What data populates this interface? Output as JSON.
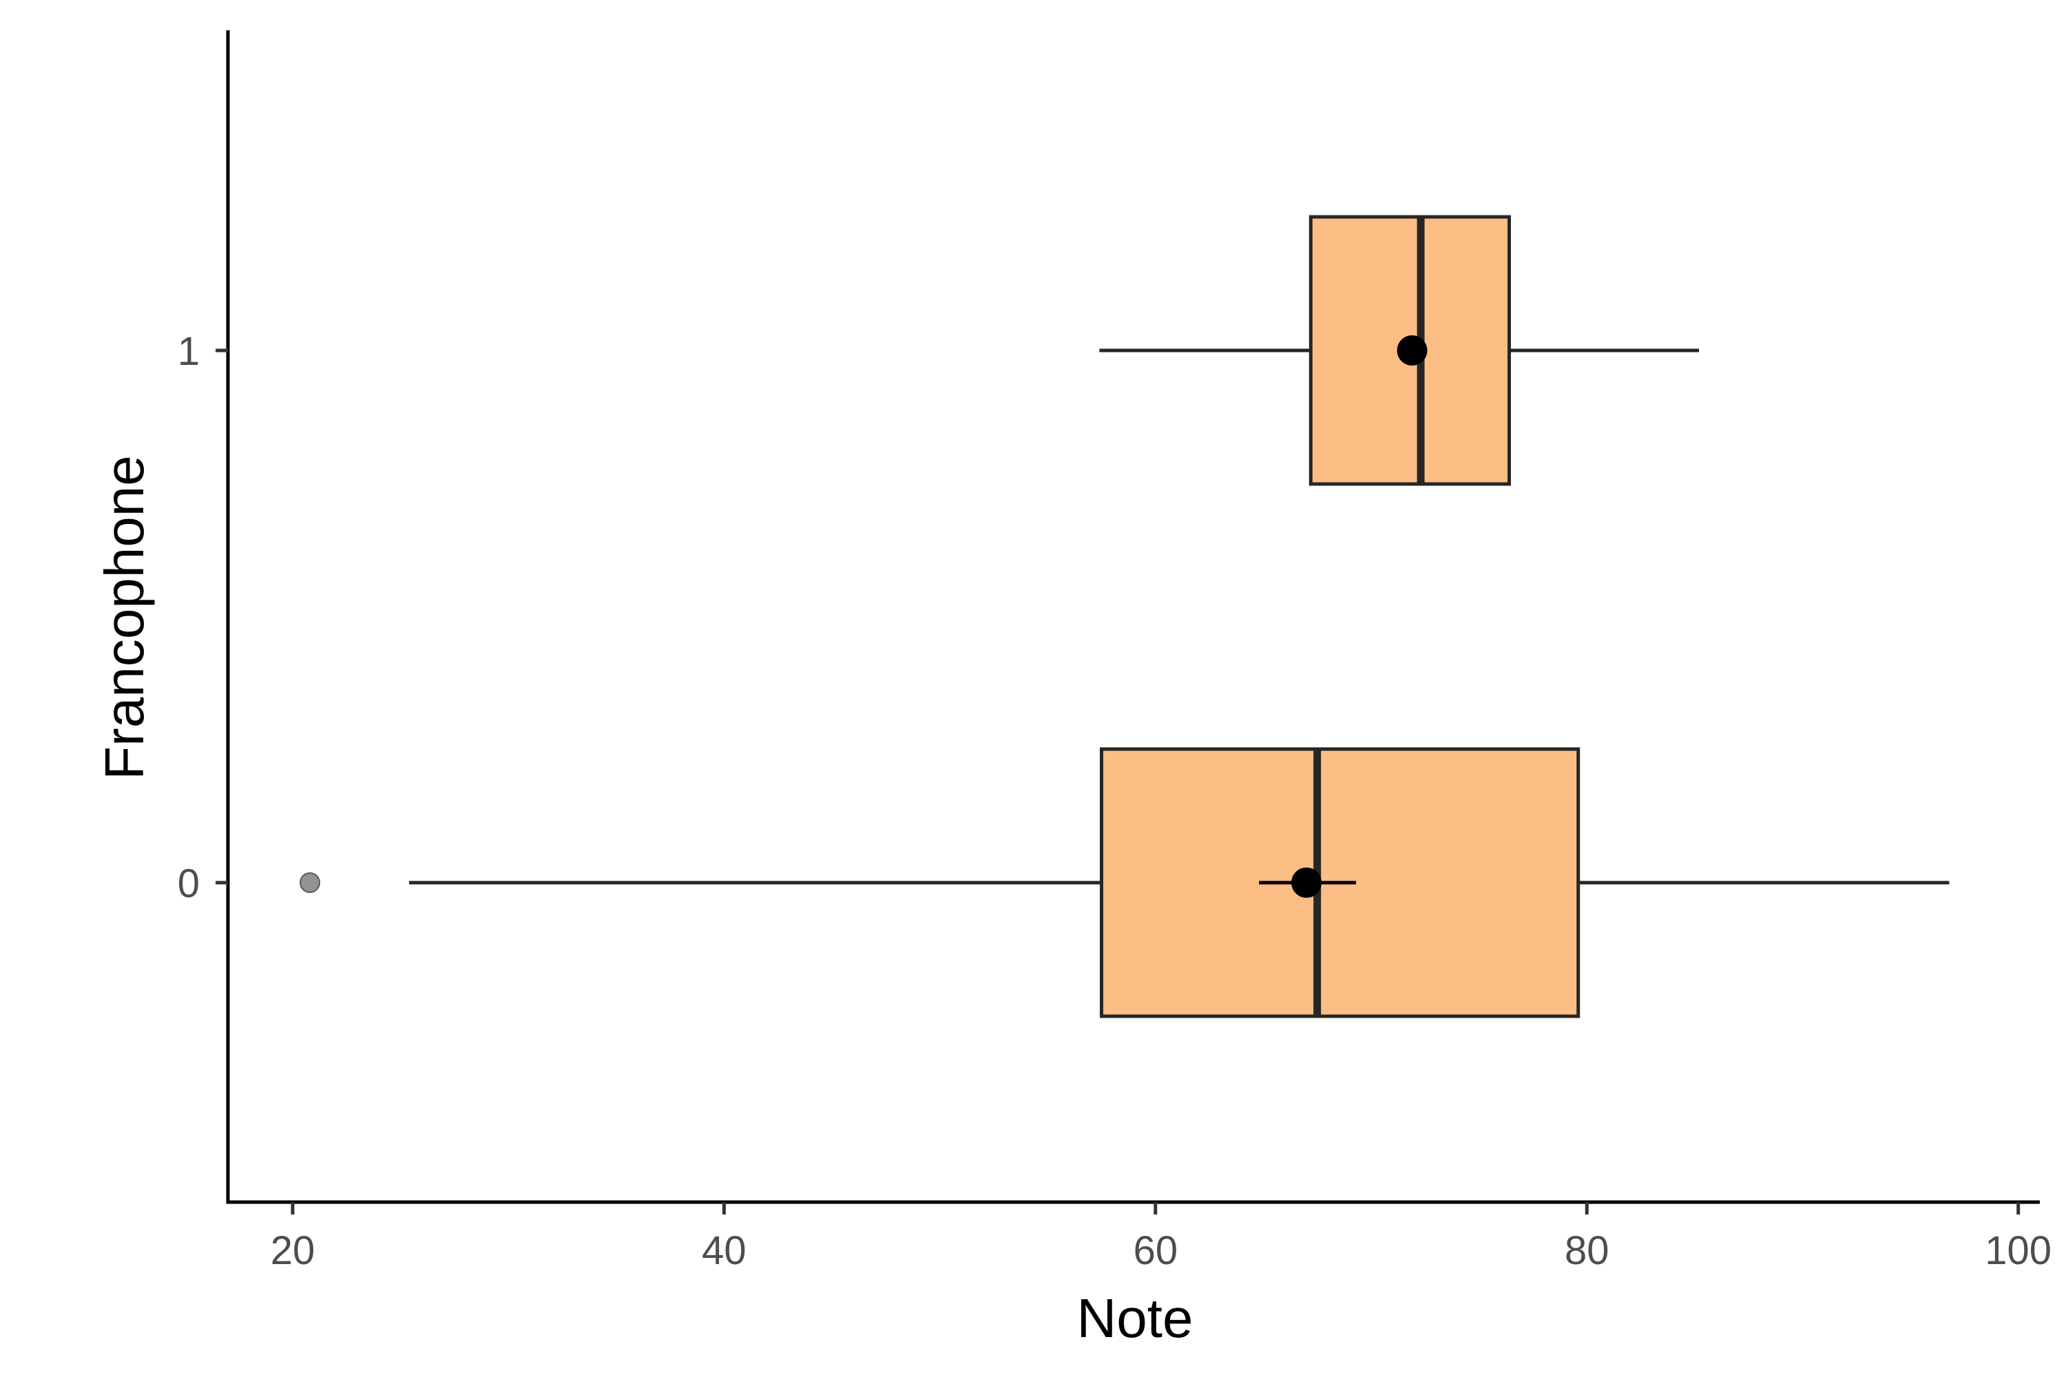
{
  "chart_data": {
    "type": "boxplot",
    "orientation": "horizontal",
    "xlabel": "Note",
    "ylabel": "Francophone",
    "xlim": [
      17,
      101
    ],
    "x_ticks": [
      20,
      40,
      60,
      80,
      100
    ],
    "categories": [
      "0",
      "1"
    ],
    "groups": [
      {
        "category": "0",
        "whisker_low": 25.4,
        "q1": 57.5,
        "median": 67.5,
        "q3": 79.6,
        "whisker_high": 96.8,
        "mean": 67.0,
        "mean_ci": [
          64.8,
          69.3
        ],
        "outliers": [
          20.8
        ]
      },
      {
        "category": "1",
        "whisker_low": 57.4,
        "q1": 67.2,
        "median": 72.3,
        "q3": 76.4,
        "whisker_high": 85.2,
        "mean": 71.9,
        "mean_ci": [
          71.7,
          72.1
        ],
        "outliers": []
      }
    ],
    "box_fill": "#fdbe86",
    "box_stroke": "#262626",
    "mean_color": "#000000",
    "outlier_color": "#7f7f7f",
    "grid": false,
    "legend": "none"
  }
}
